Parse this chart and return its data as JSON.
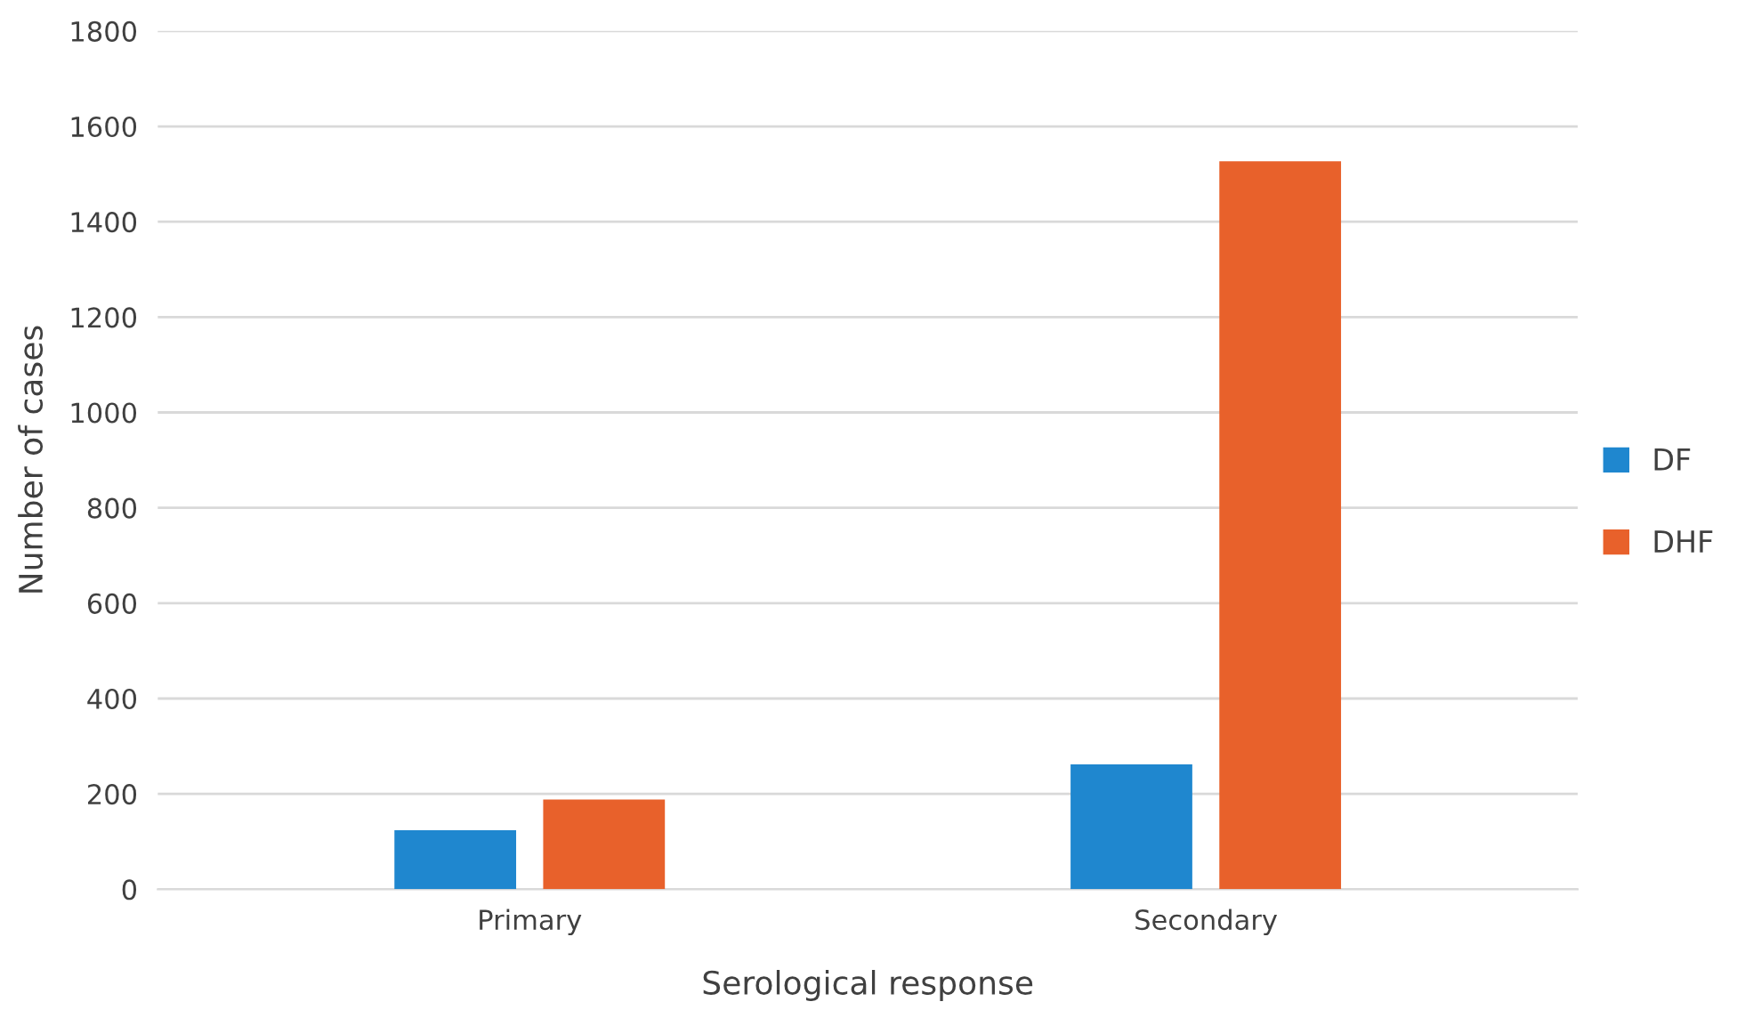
{
  "chart_data": {
    "type": "bar",
    "xlabel": "Serological response",
    "ylabel": "Number of cases",
    "categories": [
      "Primary",
      "Secondary"
    ],
    "series": [
      {
        "name": "DF",
        "color": "#1f87cf",
        "values": [
          124,
          262
        ]
      },
      {
        "name": "DHF",
        "color": "#e8612b",
        "values": [
          188,
          1527
        ]
      }
    ],
    "ylim": [
      0,
      1800
    ],
    "yticks": [
      0,
      200,
      400,
      600,
      800,
      1000,
      1200,
      1400,
      1600,
      1800
    ],
    "grid": "y",
    "legend": "right"
  }
}
